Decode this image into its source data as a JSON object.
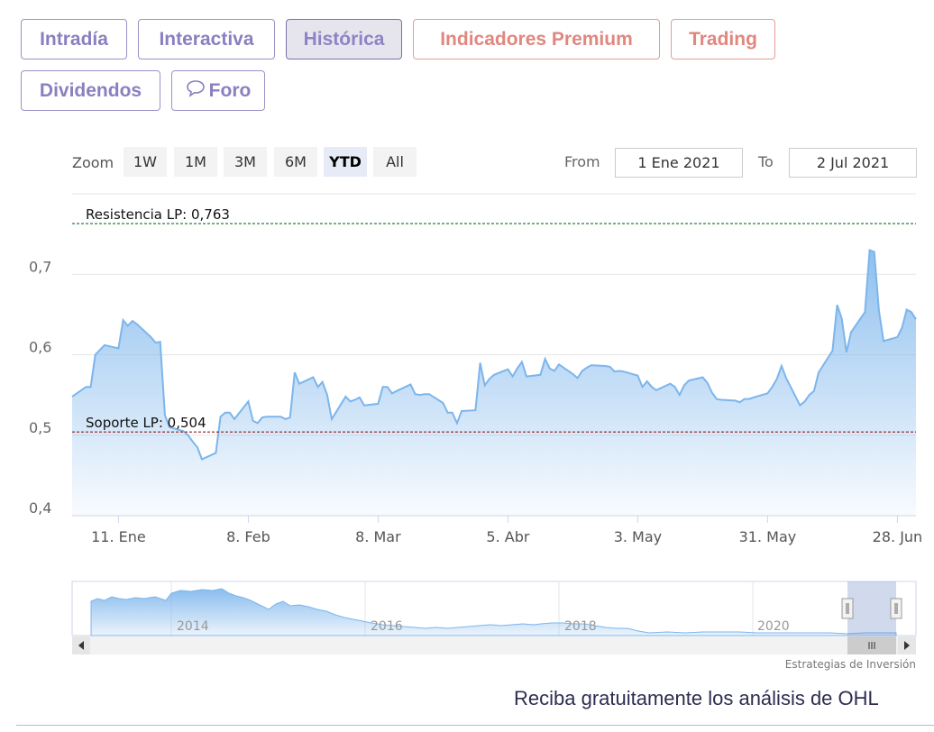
{
  "tabs": [
    {
      "label": "Intradía"
    },
    {
      "label": "Interactiva"
    },
    {
      "label": "Histórica"
    },
    {
      "label": "Indicadores Premium"
    },
    {
      "label": "Trading"
    },
    {
      "label": "Dividendos"
    },
    {
      "label": "Foro",
      "icon": "speech-bubble-icon"
    }
  ],
  "toolbar": {
    "zoom_label": "Zoom",
    "zoom_buttons": [
      "1W",
      "1M",
      "3M",
      "6M",
      "YTD",
      "All"
    ],
    "selected_zoom": "YTD",
    "from_label": "From",
    "from_value": "1 Ene 2021",
    "to_label": "To",
    "to_value": "2 Jul 2021"
  },
  "colors": {
    "series_line": "#7cb5ec",
    "resistance_line": "#2e7d32",
    "support_line": "#8b1a1a",
    "tab_accent": "#8a80c0",
    "premium_accent": "#e0877f"
  },
  "chart_data": {
    "type": "area",
    "ylim": [
      0.4,
      0.8
    ],
    "y_ticks": [
      "0,7",
      "0,6",
      "0,5",
      "0,4"
    ],
    "y_tick_values": [
      0.7,
      0.6,
      0.5,
      0.4
    ],
    "x_ticks": [
      "11. Ene",
      "8. Feb",
      "8. Mar",
      "5. Abr",
      "3. May",
      "31. May",
      "28. Jun"
    ],
    "x_tick_dates": [
      "2021-01-11",
      "2021-02-08",
      "2021-03-08",
      "2021-04-05",
      "2021-05-03",
      "2021-05-31",
      "2021-06-28"
    ],
    "x_range": [
      "2021-01-01",
      "2021-07-02"
    ],
    "grid": true,
    "annotations": [
      {
        "label": "Resistencia LP: 0,763",
        "value": 0.763,
        "style": "dashed"
      },
      {
        "label": "Soporte LP: 0,504",
        "value": 0.504,
        "style": "dashed"
      }
    ],
    "series": [
      {
        "x": [
          "2021-01-01",
          "2021-01-04",
          "2021-01-05",
          "2021-01-06",
          "2021-01-07",
          "2021-01-08",
          "2021-01-11",
          "2021-01-12",
          "2021-01-13",
          "2021-01-14",
          "2021-01-15",
          "2021-01-18",
          "2021-01-19",
          "2021-01-20",
          "2021-01-21",
          "2021-01-22",
          "2021-01-25",
          "2021-01-26",
          "2021-01-27",
          "2021-01-28",
          "2021-01-29",
          "2021-02-01",
          "2021-02-02",
          "2021-02-03",
          "2021-02-04",
          "2021-02-05",
          "2021-02-08",
          "2021-02-09",
          "2021-02-10",
          "2021-02-11",
          "2021-02-12",
          "2021-02-15",
          "2021-02-16",
          "2021-02-17",
          "2021-02-18",
          "2021-02-19",
          "2021-02-22",
          "2021-02-23",
          "2021-02-24",
          "2021-02-25",
          "2021-02-26",
          "2021-03-01",
          "2021-03-02",
          "2021-03-03",
          "2021-03-04",
          "2021-03-05",
          "2021-03-08",
          "2021-03-09",
          "2021-03-10",
          "2021-03-11",
          "2021-03-12",
          "2021-03-15",
          "2021-03-16",
          "2021-03-17",
          "2021-03-18",
          "2021-03-19",
          "2021-03-22",
          "2021-03-23",
          "2021-03-24",
          "2021-03-25",
          "2021-03-26",
          "2021-03-29",
          "2021-03-30",
          "2021-03-31",
          "2021-04-01",
          "2021-04-02",
          "2021-04-05",
          "2021-04-06",
          "2021-04-07",
          "2021-04-08",
          "2021-04-09",
          "2021-04-12",
          "2021-04-13",
          "2021-04-14",
          "2021-04-15",
          "2021-04-16",
          "2021-04-19",
          "2021-04-20",
          "2021-04-21",
          "2021-04-22",
          "2021-04-23",
          "2021-04-26",
          "2021-04-27",
          "2021-04-28",
          "2021-04-29",
          "2021-04-30",
          "2021-05-03",
          "2021-05-04",
          "2021-05-05",
          "2021-05-06",
          "2021-05-07",
          "2021-05-10",
          "2021-05-11",
          "2021-05-12",
          "2021-05-13",
          "2021-05-14",
          "2021-05-17",
          "2021-05-18",
          "2021-05-19",
          "2021-05-20",
          "2021-05-21",
          "2021-05-24",
          "2021-05-25",
          "2021-05-26",
          "2021-05-27",
          "2021-05-28",
          "2021-05-31",
          "2021-06-01",
          "2021-06-02",
          "2021-06-03",
          "2021-06-04",
          "2021-06-07",
          "2021-06-08",
          "2021-06-09",
          "2021-06-10",
          "2021-06-11",
          "2021-06-14",
          "2021-06-15",
          "2021-06-16",
          "2021-06-17",
          "2021-06-18",
          "2021-06-21",
          "2021-06-22",
          "2021-06-23",
          "2021-06-24",
          "2021-06-25",
          "2021-06-28",
          "2021-06-29",
          "2021-06-30",
          "2021-07-01",
          "2021-07-02"
        ],
        "values": [
          0.548,
          0.56,
          0.56,
          0.6,
          0.606,
          0.612,
          0.608,
          0.643,
          0.636,
          0.642,
          0.638,
          0.622,
          0.615,
          0.616,
          0.525,
          0.51,
          0.505,
          0.5,
          0.492,
          0.485,
          0.47,
          0.478,
          0.523,
          0.528,
          0.528,
          0.52,
          0.542,
          0.518,
          0.515,
          0.522,
          0.523,
          0.523,
          0.52,
          0.522,
          0.578,
          0.564,
          0.572,
          0.56,
          0.566,
          0.55,
          0.52,
          0.548,
          0.542,
          0.544,
          0.547,
          0.537,
          0.539,
          0.56,
          0.56,
          0.552,
          0.555,
          0.563,
          0.551,
          0.55,
          0.551,
          0.551,
          0.54,
          0.528,
          0.528,
          0.515,
          0.53,
          0.531,
          0.59,
          0.562,
          0.57,
          0.575,
          0.582,
          0.573,
          0.583,
          0.591,
          0.573,
          0.575,
          0.595,
          0.583,
          0.58,
          0.588,
          0.576,
          0.571,
          0.58,
          0.584,
          0.587,
          0.586,
          0.585,
          0.579,
          0.58,
          0.579,
          0.574,
          0.56,
          0.567,
          0.56,
          0.556,
          0.564,
          0.56,
          0.55,
          0.562,
          0.568,
          0.572,
          0.565,
          0.553,
          0.545,
          0.544,
          0.543,
          0.541,
          0.545,
          0.545,
          0.547,
          0.552,
          0.56,
          0.57,
          0.586,
          0.571,
          0.537,
          0.542,
          0.55,
          0.555,
          0.578,
          0.605,
          0.662,
          0.645,
          0.603,
          0.628,
          0.653,
          0.73,
          0.728,
          0.655,
          0.617,
          0.622,
          0.634,
          0.656,
          0.653,
          0.644
        ]
      }
    ]
  },
  "navigator": {
    "year_labels": [
      "2014",
      "2016",
      "2018",
      "2020"
    ]
  },
  "credit": "Estrategias de Inversión",
  "promo_text": "Reciba gratuitamente los análisis de OHL"
}
